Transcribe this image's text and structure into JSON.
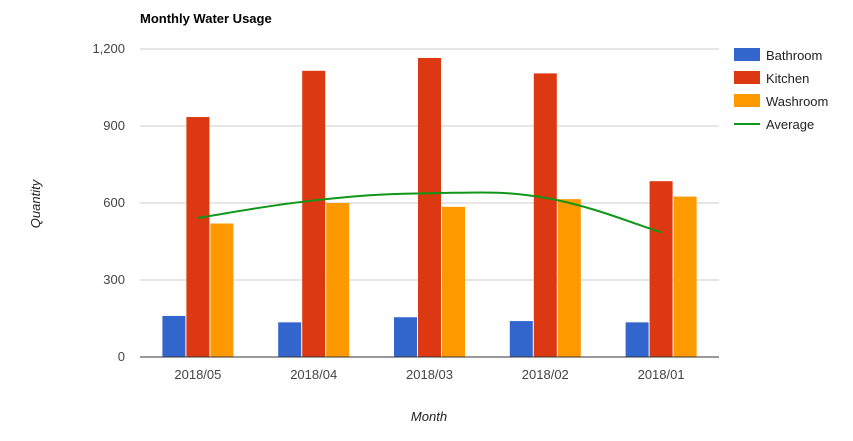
{
  "chart_data": {
    "type": "bar",
    "title": "Monthly Water Usage",
    "xlabel": "Month",
    "ylabel": "Quantity",
    "categories": [
      "2018/05",
      "2018/04",
      "2018/03",
      "2018/02",
      "2018/01"
    ],
    "ylim": [
      0,
      1200
    ],
    "yticks": [
      0,
      300,
      600,
      900,
      1200
    ],
    "ytick_labels": [
      "0",
      "300",
      "600",
      "900",
      "1,200"
    ],
    "grid": true,
    "legend_position": "right",
    "series": [
      {
        "name": "Bathroom",
        "type": "bar",
        "color": "#3366cc",
        "values": [
          160,
          135,
          155,
          140,
          135
        ]
      },
      {
        "name": "Kitchen",
        "type": "bar",
        "color": "#dc3912",
        "values": [
          935,
          1115,
          1165,
          1105,
          685
        ]
      },
      {
        "name": "Washroom",
        "type": "bar",
        "color": "#ff9900",
        "values": [
          520,
          600,
          585,
          615,
          625
        ]
      },
      {
        "name": "Average",
        "type": "line",
        "color": "#109618",
        "values": [
          542,
          610,
          638,
          620,
          486
        ]
      }
    ]
  }
}
